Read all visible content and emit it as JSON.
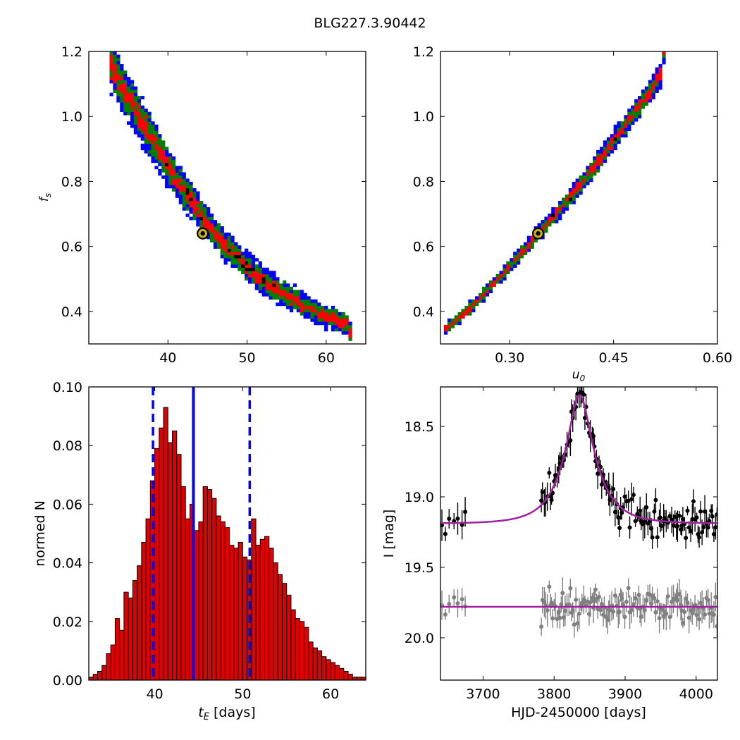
{
  "figure": {
    "title": "BLG227.3.90442"
  },
  "colors": {
    "blue": "#0000ff",
    "green": "#007f00",
    "red": "#ff0000",
    "black": "#000000",
    "gold": "#c8b400",
    "purple": "#a020a0",
    "gray": "#808080",
    "bar": "#e00000"
  },
  "chart_data": [
    {
      "id": "tE_vs_fs",
      "type": "heatmap",
      "xlabel": "",
      "ylabel": "f_s",
      "xlim": [
        30,
        65
      ],
      "ylim": [
        0.3,
        1.2
      ],
      "xticks": [
        40,
        50,
        60
      ],
      "yticks": [
        0.4,
        0.6,
        0.8,
        1.0,
        1.2
      ],
      "xtick_labels": [
        "40",
        "50",
        "60"
      ],
      "ytick_labels": [
        "0.4",
        "0.6",
        "0.8",
        "1.0",
        "1.2"
      ],
      "ridge_x": [
        33.0,
        35.0,
        37.0,
        39.0,
        41.0,
        43.0,
        45.0,
        47.0,
        49.0,
        51.0,
        53.0,
        55.0,
        57.0,
        59.0,
        61.0,
        63.0
      ],
      "ridge_y": [
        1.15,
        1.06,
        0.97,
        0.89,
        0.81,
        0.74,
        0.67,
        0.61,
        0.56,
        0.515,
        0.48,
        0.45,
        0.42,
        0.395,
        0.375,
        0.355
      ],
      "best_fit": {
        "x": 44.4,
        "y": 0.64
      }
    },
    {
      "id": "u0_vs_fs",
      "type": "heatmap",
      "xlabel": "u_0",
      "ylabel": "",
      "xlim": [
        0.2,
        0.6
      ],
      "ylim": [
        0.3,
        1.2
      ],
      "xticks": [
        0.3,
        0.45,
        0.6
      ],
      "yticks": [
        0.4,
        0.6,
        0.8,
        1.0,
        1.2
      ],
      "xtick_labels": [
        "0.30",
        "0.45",
        "0.60"
      ],
      "ytick_labels": [
        "0.4",
        "0.6",
        "0.8",
        "1.0",
        "1.2"
      ],
      "ridge_x": [
        0.212,
        0.24,
        0.27,
        0.3,
        0.33,
        0.36,
        0.39,
        0.42,
        0.45,
        0.48,
        0.51,
        0.522
      ],
      "ridge_y": [
        0.355,
        0.405,
        0.47,
        0.54,
        0.61,
        0.685,
        0.76,
        0.84,
        0.925,
        1.01,
        1.1,
        1.15
      ],
      "best_fit": {
        "x": 0.341,
        "y": 0.64
      }
    },
    {
      "id": "tE_histogram",
      "type": "bar",
      "xlabel": "t_E [days]",
      "ylabel": "normed N",
      "xlim": [
        32.5,
        64
      ],
      "ylim": [
        0,
        0.1
      ],
      "xticks": [
        40,
        50,
        60
      ],
      "yticks": [
        0,
        0.02,
        0.04,
        0.06,
        0.08,
        0.1
      ],
      "xtick_labels": [
        "40",
        "50",
        "60"
      ],
      "ytick_labels": [
        "0.00",
        "0.02",
        "0.04",
        "0.06",
        "0.08",
        "0.10"
      ],
      "bin_start": 32.5,
      "bin_width": 0.5,
      "values": [
        0.001,
        0.002,
        0.003,
        0.005,
        0.009,
        0.012,
        0.021,
        0.017,
        0.03,
        0.028,
        0.034,
        0.039,
        0.047,
        0.055,
        0.068,
        0.079,
        0.086,
        0.093,
        0.081,
        0.085,
        0.077,
        0.066,
        0.055,
        0.06,
        0.051,
        0.054,
        0.066,
        0.065,
        0.062,
        0.056,
        0.054,
        0.052,
        0.046,
        0.045,
        0.047,
        0.042,
        0.041,
        0.055,
        0.046,
        0.048,
        0.049,
        0.045,
        0.04,
        0.036,
        0.033,
        0.029,
        0.024,
        0.021,
        0.02,
        0.018,
        0.013,
        0.011,
        0.01,
        0.008,
        0.007,
        0.006,
        0.005,
        0.004,
        0.003,
        0.002,
        0.001,
        0.001,
        0.001
      ],
      "median": 44.4,
      "lower": 39.8,
      "upper": 50.8
    },
    {
      "id": "light_curve",
      "type": "scatter",
      "xlabel": "HJD-2450000 [days]",
      "ylabel": "I [mag]",
      "xlim": [
        3640,
        4030
      ],
      "ylim": [
        20.3,
        18.22
      ],
      "xticks": [
        3700,
        3800,
        3900,
        4000
      ],
      "yticks": [
        18.5,
        19.0,
        19.5,
        20.0
      ],
      "xtick_labels": [
        "3700",
        "3800",
        "3900",
        "4000"
      ],
      "ytick_labels": [
        "18.5",
        "19.0",
        "19.5",
        "20.0"
      ],
      "model": {
        "t0": 3836,
        "tE": 44.4,
        "u0": 0.341,
        "fs": 0.64,
        "Ibase": 19.19
      },
      "residual_level": 19.78
    }
  ]
}
